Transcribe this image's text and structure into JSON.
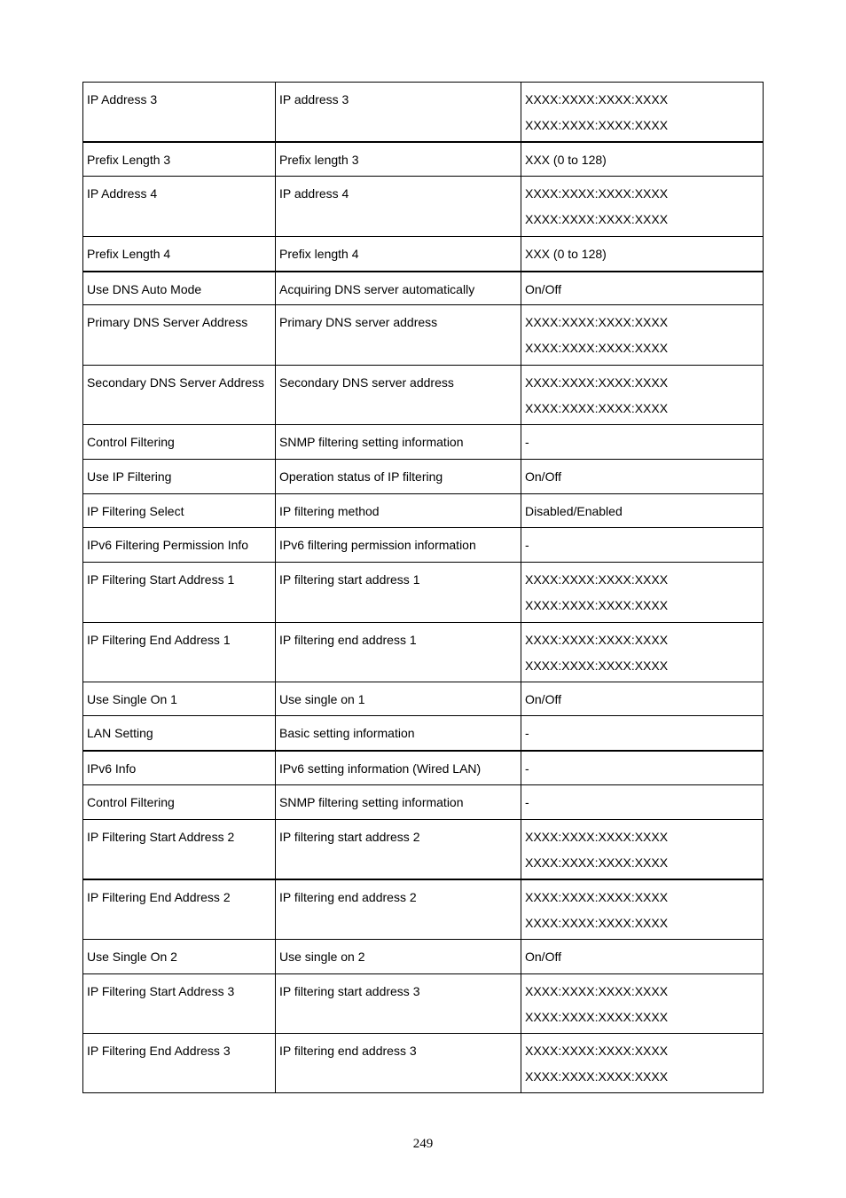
{
  "table": {
    "rows": [
      {
        "item": "IP Address 3",
        "description": "IP address 3",
        "values": [
          "XXXX:XXXX:XXXX:XXXX",
          "XXXX:XXXX:XXXX:XXXX"
        ]
      },
      {
        "item": "Prefix Length 3",
        "description": "Prefix length 3",
        "values": [
          "XXX (0 to 128)"
        ]
      },
      {
        "item": "IP Address 4",
        "description": "IP address 4",
        "values": [
          "XXXX:XXXX:XXXX:XXXX",
          "XXXX:XXXX:XXXX:XXXX"
        ]
      },
      {
        "item": "Prefix Length 4",
        "description": "Prefix length 4",
        "values": [
          "XXX (0 to 128)"
        ]
      },
      {
        "item": "Use DNS Auto Mode",
        "description": "Acquiring DNS server automatically",
        "values": [
          "On/Off"
        ]
      },
      {
        "item": "Primary DNS Server Address",
        "description": "Primary DNS server address",
        "values": [
          "XXXX:XXXX:XXXX:XXXX",
          "XXXX:XXXX:XXXX:XXXX"
        ]
      },
      {
        "item": "Secondary DNS Server Address",
        "description": "Secondary DNS server address",
        "values": [
          "XXXX:XXXX:XXXX:XXXX",
          "XXXX:XXXX:XXXX:XXXX"
        ]
      },
      {
        "item": "Control Filtering",
        "description": "SNMP filtering setting information",
        "values": [
          "-"
        ]
      },
      {
        "item": "Use IP Filtering",
        "description": "Operation status of IP filtering",
        "values": [
          "On/Off"
        ]
      },
      {
        "item": "IP Filtering Select",
        "description": "IP filtering method",
        "values": [
          "Disabled/Enabled"
        ]
      },
      {
        "item": "IPv6 Filtering Permission Info",
        "description": "IPv6 filtering permission information",
        "values": [
          "-"
        ]
      },
      {
        "item": "IP Filtering Start Address 1",
        "description": "IP filtering start address 1",
        "values": [
          "XXXX:XXXX:XXXX:XXXX",
          "XXXX:XXXX:XXXX:XXXX"
        ]
      },
      {
        "item": "IP Filtering End Address 1",
        "description": "IP filtering end address 1",
        "values": [
          "XXXX:XXXX:XXXX:XXXX",
          "XXXX:XXXX:XXXX:XXXX"
        ]
      },
      {
        "item": "Use Single On 1",
        "description": "Use single on 1",
        "values": [
          "On/Off"
        ]
      },
      {
        "item": "LAN Setting",
        "description": "Basic setting information",
        "values": [
          "-"
        ]
      },
      {
        "item": "IPv6 Info",
        "description": "IPv6 setting information (Wired LAN)",
        "values": [
          "-"
        ]
      },
      {
        "item": "Control Filtering",
        "description": "SNMP filtering setting information",
        "values": [
          "-"
        ]
      },
      {
        "item": "IP Filtering Start Address 2",
        "description": "IP filtering start address 2",
        "values": [
          "XXXX:XXXX:XXXX:XXXX",
          "XXXX:XXXX:XXXX:XXXX"
        ]
      },
      {
        "item": "IP Filtering End Address 2",
        "description": "IP filtering end address 2",
        "values": [
          "XXXX:XXXX:XXXX:XXXX",
          "XXXX:XXXX:XXXX:XXXX"
        ]
      },
      {
        "item": "Use Single On 2",
        "description": "Use single on 2",
        "values": [
          "On/Off"
        ]
      },
      {
        "item": "IP Filtering Start Address 3",
        "description": "IP filtering start address 3",
        "values": [
          "XXXX:XXXX:XXXX:XXXX",
          "XXXX:XXXX:XXXX:XXXX"
        ]
      },
      {
        "item": "IP Filtering End Address 3",
        "description": "IP filtering end address 3",
        "values": [
          "XXXX:XXXX:XXXX:XXXX",
          "XXXX:XXXX:XXXX:XXXX"
        ]
      }
    ]
  },
  "page_number": "249"
}
